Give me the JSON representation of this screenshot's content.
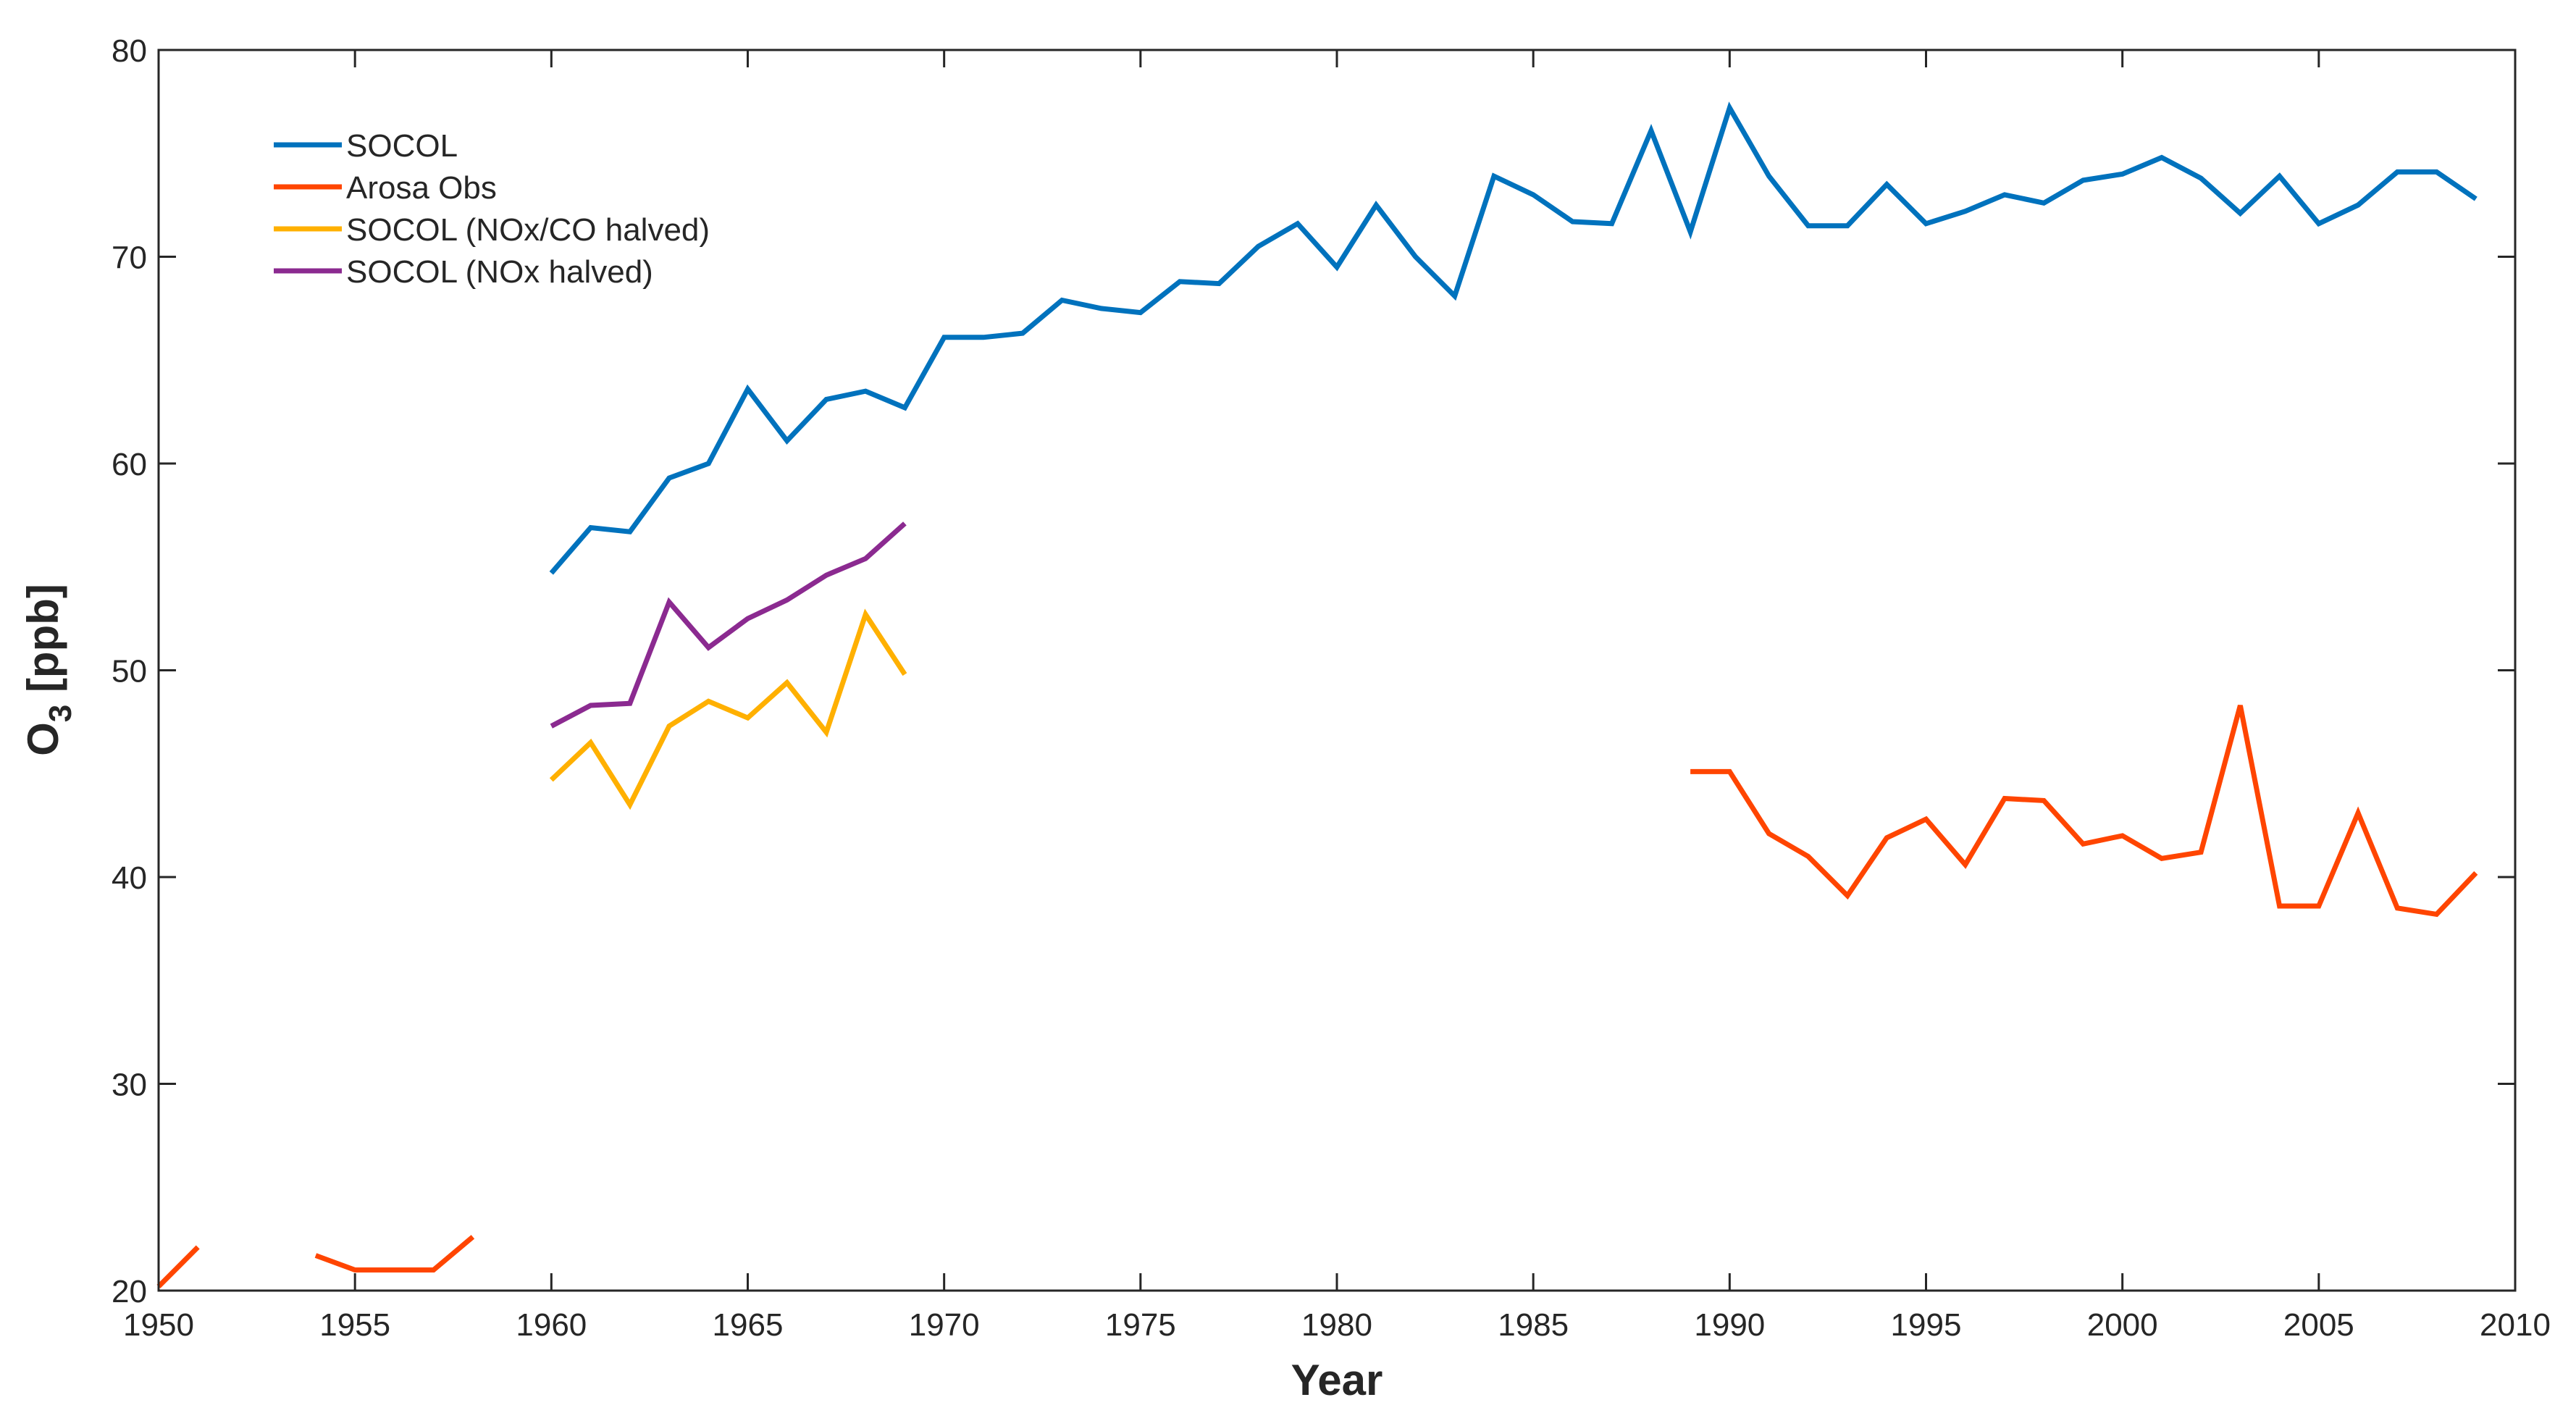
{
  "chart_data": {
    "type": "line",
    "title": "",
    "xlabel": "Year",
    "ylabel_main": "O",
    "ylabel_sub": "3",
    "ylabel_rest": " [ppb]",
    "xlim": [
      1950,
      2010
    ],
    "ylim": [
      20,
      80
    ],
    "xticks": [
      1950,
      1955,
      1960,
      1965,
      1970,
      1975,
      1980,
      1985,
      1990,
      1995,
      2000,
      2005,
      2010
    ],
    "yticks": [
      20,
      30,
      40,
      50,
      60,
      70,
      80
    ],
    "grid": false,
    "legend_position": "top-left",
    "series": [
      {
        "name": "SOCOL",
        "color": "#0072BD",
        "segments": [
          {
            "x": [
              1960,
              1961,
              1962,
              1963,
              1964,
              1965,
              1966,
              1967,
              1968,
              1969,
              1970,
              1971,
              1972,
              1973,
              1974,
              1975,
              1976,
              1977,
              1978,
              1979,
              1980,
              1981,
              1982,
              1983,
              1984,
              1985,
              1986,
              1987,
              1988,
              1989,
              1990,
              1991,
              1992,
              1993,
              1994,
              1995,
              1996,
              1997,
              1998,
              1999,
              2000,
              2001,
              2002,
              2003,
              2004,
              2005,
              2006,
              2007,
              2008,
              2009
            ],
            "y": [
              54.7,
              56.9,
              56.7,
              59.3,
              60.0,
              63.6,
              61.1,
              63.1,
              63.5,
              62.7,
              66.1,
              66.1,
              66.3,
              67.9,
              67.5,
              67.3,
              68.8,
              68.7,
              70.5,
              71.6,
              69.5,
              72.5,
              70.0,
              68.1,
              73.9,
              73.0,
              71.7,
              71.6,
              76.1,
              71.2,
              77.2,
              73.9,
              71.5,
              71.5,
              73.5,
              71.6,
              72.2,
              73.0,
              72.6,
              73.7,
              74.0,
              74.8,
              73.8,
              72.1,
              73.9,
              71.6,
              72.5,
              74.1,
              74.1,
              72.8
            ]
          }
        ]
      },
      {
        "name": "Arosa Obs",
        "color": "#FF4500",
        "segments": [
          {
            "x": [
              1950,
              1951
            ],
            "y": [
              20.2,
              22.1
            ]
          },
          {
            "x": [
              1954,
              1955,
              1956,
              1957,
              1958
            ],
            "y": [
              21.7,
              21.0,
              21.0,
              21.0,
              22.6
            ]
          },
          {
            "x": [
              1989,
              1990,
              1991,
              1992,
              1993,
              1994,
              1995,
              1996,
              1997,
              1998,
              1999,
              2000,
              2001,
              2002,
              2003,
              2004,
              2005,
              2006,
              2007,
              2008,
              2009
            ],
            "y": [
              45.1,
              45.1,
              42.1,
              41.0,
              39.1,
              41.9,
              42.8,
              40.6,
              43.8,
              43.7,
              41.6,
              42.0,
              40.9,
              41.2,
              48.3,
              38.6,
              38.6,
              43.1,
              38.5,
              38.2,
              40.2
            ]
          }
        ]
      },
      {
        "name": "SOCOL (NOx/CO halved)",
        "color": "#FFB000",
        "segments": [
          {
            "x": [
              1960,
              1961,
              1962,
              1963,
              1964,
              1965,
              1966,
              1967,
              1968,
              1969
            ],
            "y": [
              44.7,
              46.5,
              43.5,
              47.3,
              48.5,
              47.7,
              49.4,
              47.0,
              52.7,
              49.8
            ]
          }
        ]
      },
      {
        "name": "SOCOL (NOx halved)",
        "color": "#8B2A90",
        "segments": [
          {
            "x": [
              1960,
              1961,
              1962,
              1963,
              1964,
              1965,
              1966,
              1967,
              1968,
              1969
            ],
            "y": [
              47.3,
              48.3,
              48.4,
              53.3,
              51.1,
              52.5,
              53.4,
              54.6,
              55.4,
              57.1
            ]
          }
        ]
      }
    ]
  }
}
